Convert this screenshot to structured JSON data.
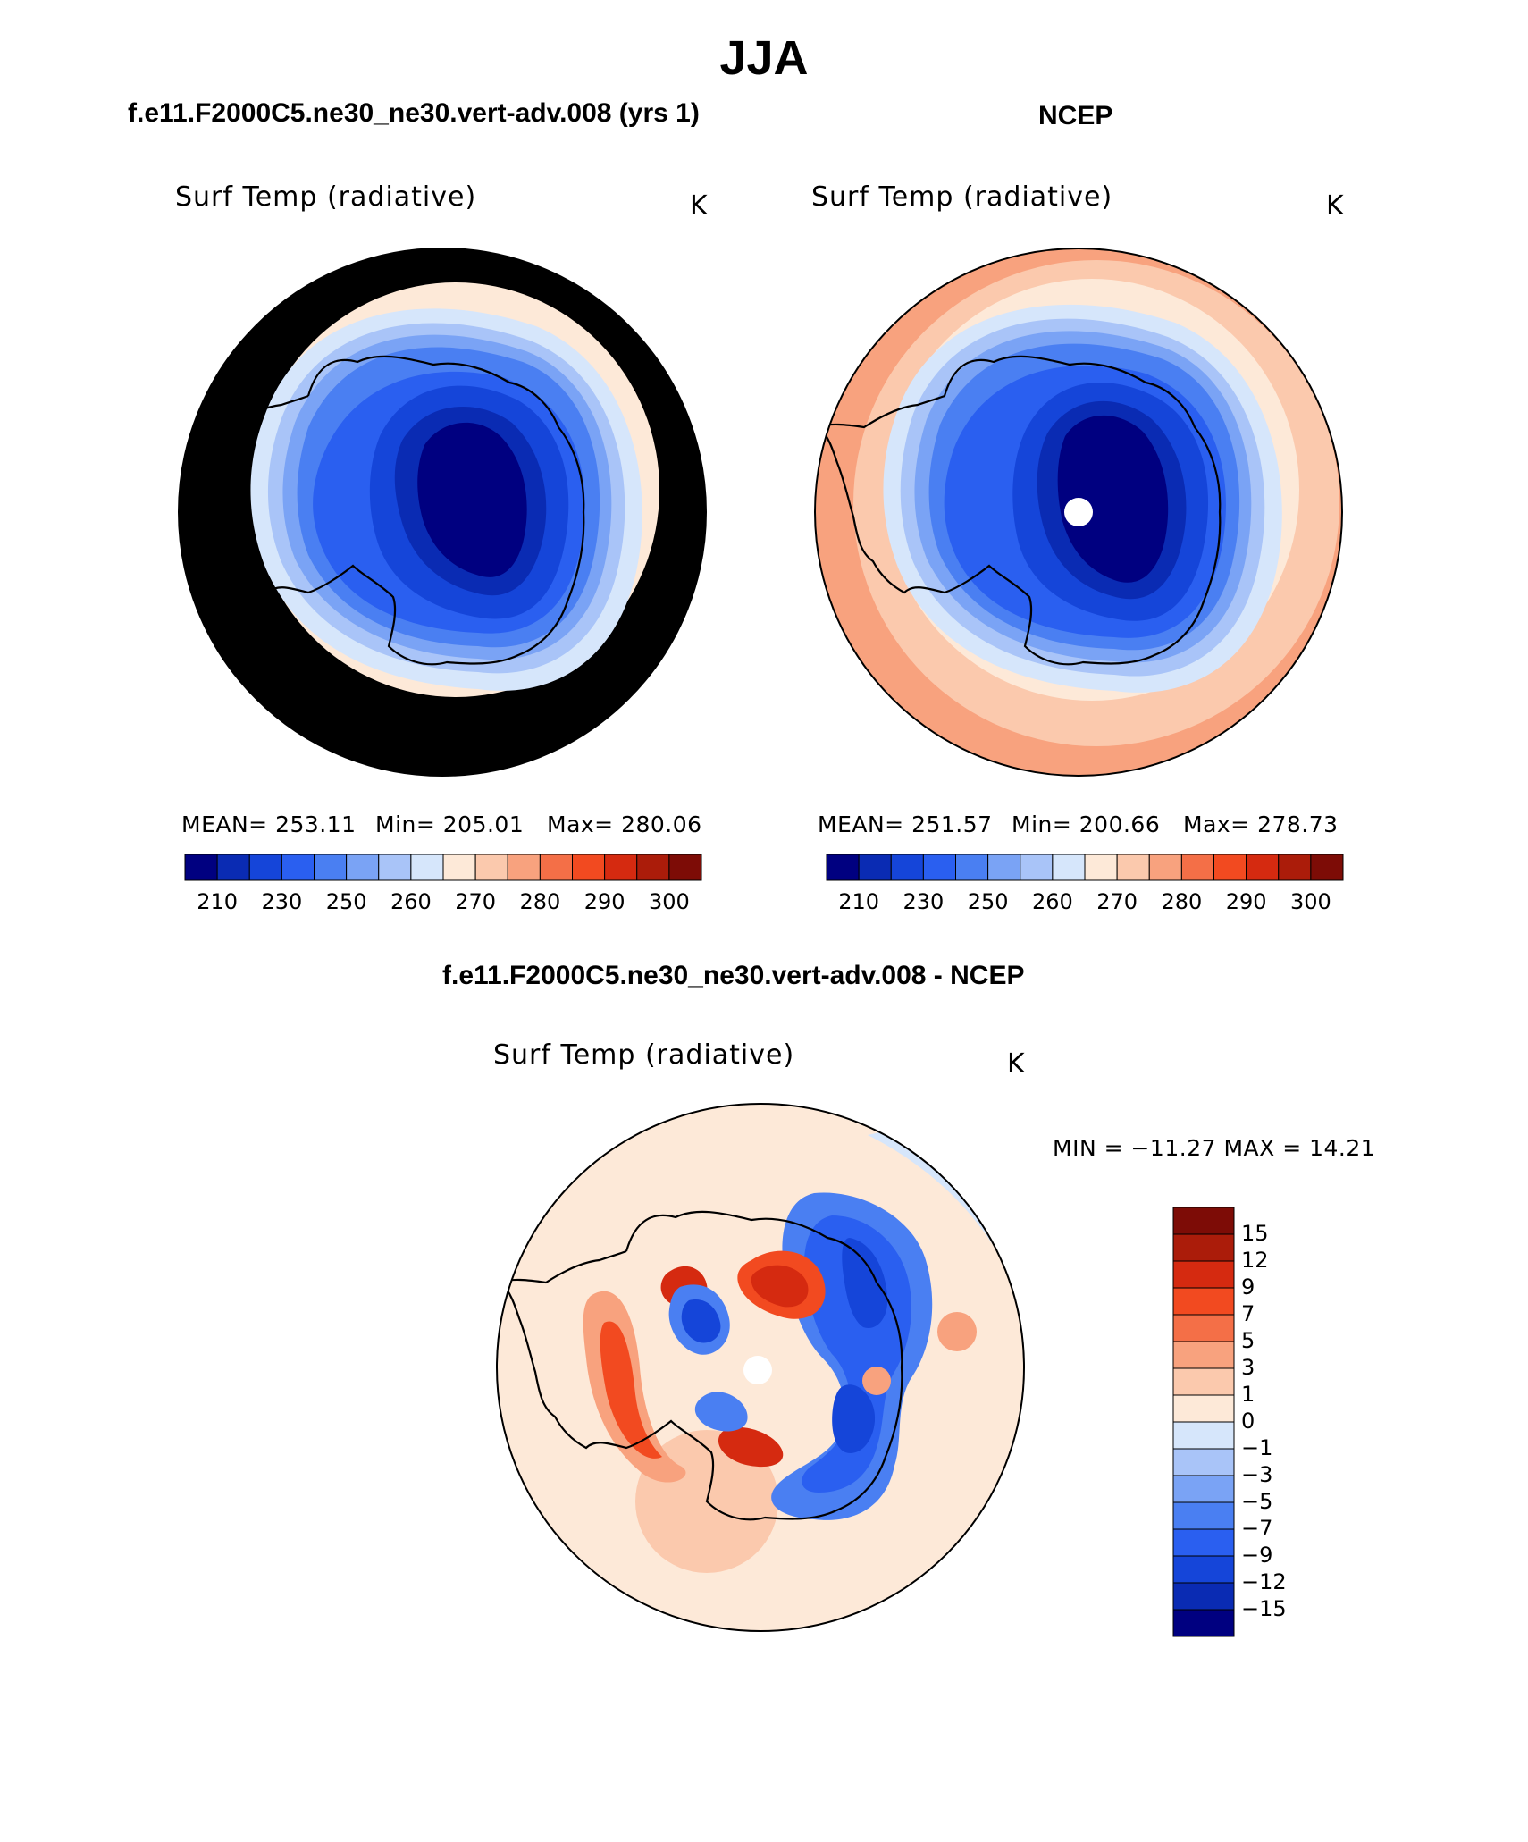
{
  "figure": {
    "title": "JJA",
    "left_title": "f.e11.F2000C5.ne30_ne30.vert-adv.008 (yrs 1)",
    "right_title": "NCEP",
    "diff_title": "f.e11.F2000C5.ne30_ne30.vert-adv.008 - NCEP"
  },
  "panels": {
    "model": {
      "variable": "Surf Temp (radiative)",
      "units": "K",
      "mean_text": "MEAN= 253.11",
      "min_text": "Min= 205.01",
      "max_text": "Max= 280.06"
    },
    "obs": {
      "variable": "Surf Temp (radiative)",
      "units": "K",
      "mean_text": "MEAN= 251.57",
      "min_text": "Min= 200.66",
      "max_text": "Max= 278.73"
    },
    "diff": {
      "variable": "Surf Temp (radiative)",
      "units": "K",
      "minmax_text": "MIN = −11.27 MAX =   14.21"
    }
  },
  "colorbars": {
    "field": {
      "colors": [
        "#000080",
        "#0a2bb3",
        "#1545d9",
        "#2a5ff0",
        "#4a7ff2",
        "#7aa3f5",
        "#a9c4f8",
        "#d6e6fb",
        "#fde9d8",
        "#fbc9ad",
        "#f8a27e",
        "#f46f47",
        "#f24a20",
        "#d52a10",
        "#ab1c0a",
        "#7d0c06"
      ],
      "tick_labels": [
        "210",
        "230",
        "250",
        "260",
        "270",
        "280",
        "290",
        "300"
      ]
    },
    "diff": {
      "colors": [
        "#000080",
        "#0a2bb3",
        "#1545d9",
        "#2a5ff0",
        "#4a7ff2",
        "#7aa3f5",
        "#a9c4f8",
        "#d6e6fb",
        "#fde9d8",
        "#fbc9ad",
        "#f8a27e",
        "#f46f47",
        "#f24a20",
        "#d52a10",
        "#ab1c0a",
        "#7d0c06"
      ],
      "tick_labels": [
        "15",
        "12",
        "9",
        "7",
        "5",
        "3",
        "1",
        "0",
        "−1",
        "−3",
        "−5",
        "−7",
        "−9",
        "−12",
        "−15"
      ]
    }
  },
  "map_colors": {
    "ocean_warm": "#f8a27e",
    "ocean_mid": "#fbc9ad",
    "ocean_cool": "#fde9d8",
    "coast_cold": "#d6e6fb",
    "ring1": "#a9c4f8",
    "ring2": "#7aa3f5",
    "ring3": "#4a7ff2",
    "ring4": "#2a5ff0",
    "ring5": "#1545d9",
    "ring6": "#0a2bb3",
    "core": "#000080",
    "coastline": "#000000",
    "diff_background": "#fde9d8",
    "diff_light_blue": "#d6e6fb",
    "diff_blue": "#2a5ff0",
    "diff_dark_blue": "#1545d9",
    "diff_orange": "#f8a27e",
    "diff_red": "#f24a20",
    "diff_deep_red": "#d52a10"
  }
}
